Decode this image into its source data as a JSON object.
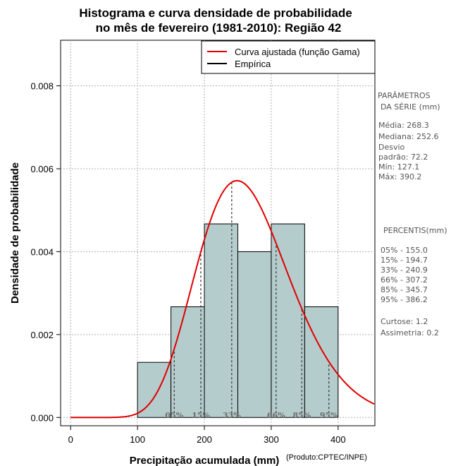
{
  "chart_data": {
    "type": "histogram",
    "title_line1": "Histograma e curva densidade de probabilidade",
    "title_line2": "no mês de fevereiro (1981-2010): Região 42",
    "xlabel": "Precipitação acumulada (mm)",
    "ylabel": "Densidade de probabilidade",
    "credit": "(Produto:CPTEC/INPE)",
    "xlim": [
      -15,
      455
    ],
    "ylim": [
      -0.0002,
      0.0091
    ],
    "x_ticks": [
      0,
      100,
      200,
      300,
      400
    ],
    "x_tick_labels": [
      "0",
      "100",
      "200",
      "300",
      "400"
    ],
    "y_ticks": [
      0.0,
      0.002,
      0.004,
      0.006,
      0.008
    ],
    "y_tick_labels": [
      "0.000",
      "0.002",
      "0.004",
      "0.006",
      "0.008"
    ],
    "grid": true,
    "bins": [
      {
        "start": 100,
        "end": 150,
        "density": 0.00133
      },
      {
        "start": 150,
        "end": 200,
        "density": 0.00267
      },
      {
        "start": 200,
        "end": 250,
        "density": 0.00467
      },
      {
        "start": 250,
        "end": 300,
        "density": 0.004
      },
      {
        "start": 300,
        "end": 350,
        "density": 0.00467
      },
      {
        "start": 350,
        "end": 400,
        "density": 0.00267
      }
    ],
    "gamma_fit": {
      "shape": 13.86,
      "scale": 19.35
    },
    "fit_color": "#e00000",
    "bar_color": "#b5cccc",
    "percentile_marks": [
      {
        "label": "05%",
        "value": 155.0
      },
      {
        "label": "15%",
        "value": 194.7
      },
      {
        "label": "33%",
        "value": 240.9
      },
      {
        "label": "66%",
        "value": 307.2
      },
      {
        "label": "85%",
        "value": 345.7
      },
      {
        "label": "95%",
        "value": 386.2
      }
    ],
    "legend": {
      "position": "top-right",
      "entries": [
        {
          "label": "Curva ajustada (função Gama)",
          "color": "#e00000"
        },
        {
          "label": "Empírica",
          "color": "#000000"
        }
      ]
    }
  },
  "side_panel": {
    "params_title_1": "PARÂMETROS",
    "params_title_2": "DA SÉRIE (mm)",
    "mean": "Média:  268.3",
    "median": "Mediana:  252.6",
    "std_1": "Desvio",
    "std_2": "padrão:  72.2",
    "min": "Mín:  127.1",
    "max": "Máx:  390.2",
    "percentis_title": "PERCENTIS(mm)",
    "p05": "05% -   155.0",
    "p15": "15% -   194.7",
    "p33": "33% -   240.9",
    "p66": "66% -   307.2",
    "p85": "85% -   345.7",
    "p95": "95% -   386.2",
    "kurtosis": "Curtose:  1.2",
    "skewness": "Assimetria:  0.2"
  }
}
